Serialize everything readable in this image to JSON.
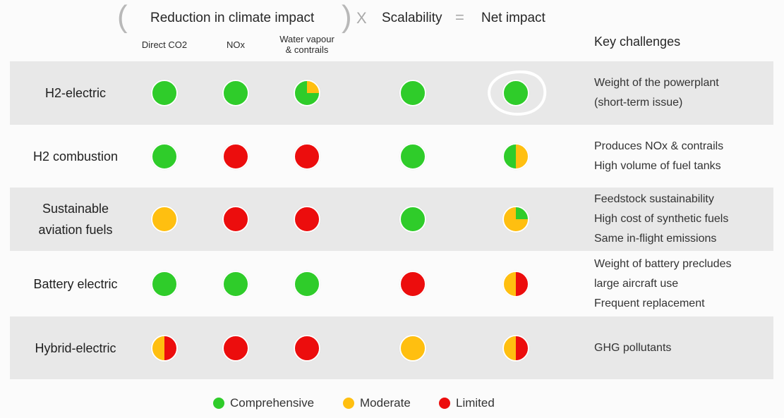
{
  "header": {
    "open_paren": "(",
    "close_paren": ")",
    "reduction": "Reduction in climate impact",
    "times": "X",
    "scalability": "Scalability",
    "equals": "=",
    "net_impact": "Net impact",
    "key_challenges": "Key challenges",
    "sub_direct_co2": "Direct CO2",
    "sub_nox": "NOx",
    "sub_water_1": "Water vapour",
    "sub_water_2": "& contrails"
  },
  "colors": {
    "comprehensive": "#2fcc2a",
    "moderate": "#ffbf10",
    "limited": "#ec0d0d",
    "row_shade": "#e8e8e8"
  },
  "rating_codes": {
    "G": "Comprehensive",
    "M": "Moderate",
    "L": "Limited",
    "GM": "Comprehensive / Moderate (half)",
    "ML": "Moderate / Limited (half)",
    "GQ": "Comprehensive with quarter Moderate",
    "QG": "Moderate with quarter Comprehensive"
  },
  "rows": [
    {
      "name_lines": [
        "H2-electric"
      ],
      "ratings": [
        "G",
        "G",
        "GQ",
        "G",
        "G"
      ],
      "highlighted": true,
      "challenges": [
        "Weight of the powerplant",
        "(short-term issue)"
      ]
    },
    {
      "name_lines": [
        "H2 combustion"
      ],
      "ratings": [
        "G",
        "L",
        "L",
        "G",
        "GM"
      ],
      "highlighted": false,
      "challenges": [
        "Produces NOx & contrails",
        "High volume of fuel tanks"
      ]
    },
    {
      "name_lines": [
        "Sustainable",
        "aviation fuels"
      ],
      "ratings": [
        "M",
        "L",
        "L",
        "G",
        "QG"
      ],
      "highlighted": false,
      "challenges": [
        "Feedstock sustainability",
        "High cost of synthetic fuels",
        "Same in-flight emissions"
      ]
    },
    {
      "name_lines": [
        "Battery electric"
      ],
      "ratings": [
        "G",
        "G",
        "G",
        "L",
        "ML"
      ],
      "highlighted": false,
      "challenges": [
        "Weight of battery precludes",
        "large aircraft use",
        "Frequent replacement"
      ]
    },
    {
      "name_lines": [
        "Hybrid-electric"
      ],
      "ratings": [
        "ML",
        "L",
        "L",
        "M",
        "ML"
      ],
      "highlighted": false,
      "challenges": [
        "GHG pollutants"
      ]
    }
  ],
  "legend": [
    {
      "label": "Comprehensive",
      "color": "#2fcc2a"
    },
    {
      "label": "Moderate",
      "color": "#ffbf10"
    },
    {
      "label": "Limited",
      "color": "#ec0d0d"
    }
  ]
}
